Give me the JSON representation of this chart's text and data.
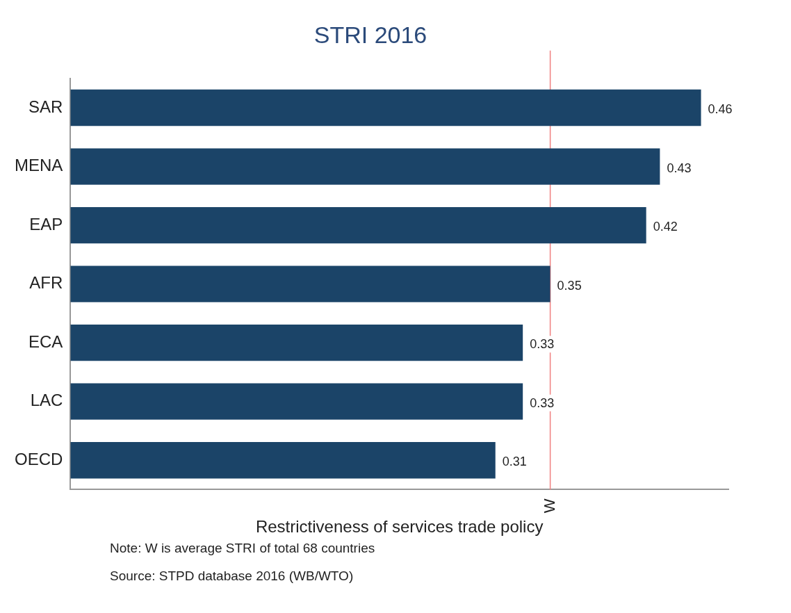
{
  "chart_data": {
    "type": "bar",
    "orientation": "horizontal",
    "title": "STRI 2016",
    "xlabel": "Restrictiveness of services trade policy",
    "categories": [
      "SAR",
      "MENA",
      "EAP",
      "AFR",
      "ECA",
      "LAC",
      "OECD"
    ],
    "values": [
      0.46,
      0.43,
      0.42,
      0.35,
      0.33,
      0.33,
      0.31
    ],
    "color": "#1b4468",
    "xlim": [
      0,
      0.48
    ],
    "xticks": [
      {
        "value": 0.35,
        "label": "W"
      }
    ],
    "ref_lines": [
      {
        "axis": "x",
        "value": 0.35,
        "color": "#f08080"
      }
    ],
    "data_labels": true,
    "grid": false,
    "legend": false,
    "annotations": [
      "Note: W is average STRI of total 68 countries",
      "Source: STPD database 2016 (WB/WTO)"
    ]
  }
}
